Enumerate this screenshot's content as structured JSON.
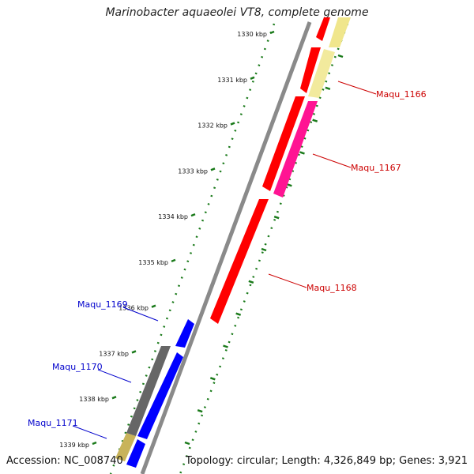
{
  "title": "Marinobacter aquaeolei VT8, complete genome",
  "footer": {
    "accession": "Accession: NC_008740",
    "summary": "Topology: circular; Length: 4,326,849 bp; Genes: 3,921"
  },
  "ruler": {
    "ticks": [
      "1330 kbp",
      "1331 kbp",
      "1332 kbp",
      "1333 kbp",
      "1334 kbp",
      "1335 kbp",
      "1336 kbp",
      "1337 kbp",
      "1338 kbp",
      "1339 kbp"
    ]
  },
  "gene_labels": [
    {
      "id": "Maqu_1166",
      "text": "Maqu_1166",
      "color": "#cc0000"
    },
    {
      "id": "Maqu_1167",
      "text": "Maqu_1167",
      "color": "#cc0000"
    },
    {
      "id": "Maqu_1168",
      "text": "Maqu_1168",
      "color": "#cc0000"
    },
    {
      "id": "Maqu_1169",
      "text": "Maqu_1169",
      "color": "#0000cc"
    },
    {
      "id": "Maqu_1170",
      "text": "Maqu_1170",
      "color": "#0000cc"
    },
    {
      "id": "Maqu_1171",
      "text": "Maqu_1171",
      "color": "#0000cc"
    }
  ],
  "colors": {
    "forward_cds": "#ff0000",
    "reverse_cds": "#0000ff",
    "trna": "#ff1493",
    "pseudo": "#f0e68c",
    "other": "#777777",
    "backbone": "#8a8a8a",
    "ticks": "#1a7a1a",
    "label_line_forward": "#cc0000",
    "label_line_reverse": "#0000cc"
  }
}
